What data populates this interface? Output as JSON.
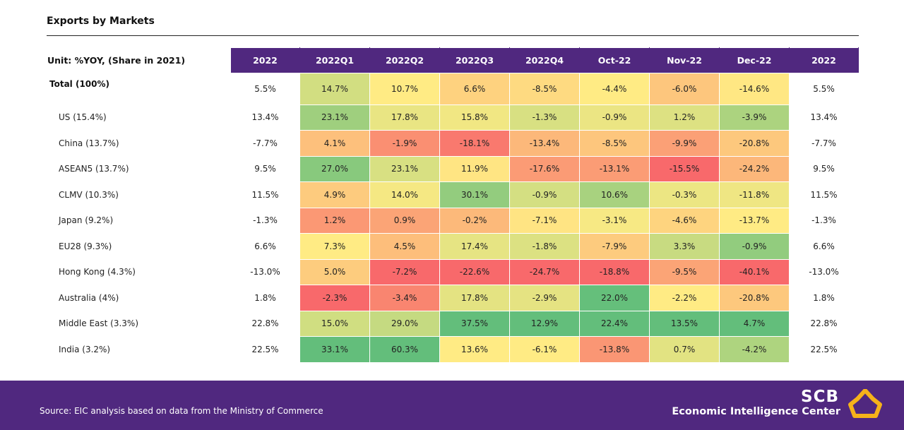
{
  "title": "Exports by Markets",
  "chart_data": {
    "type": "table",
    "title": "Exports by Markets",
    "unit": "Unit: %YOY, (Share in 2021)",
    "columns": [
      "2022",
      "2022Q1",
      "2022Q2",
      "2022Q3",
      "2022Q4",
      "Oct-22",
      "Nov-22",
      "Dec-22",
      "2022"
    ],
    "heatmap_columns": [
      1,
      2,
      3,
      4,
      5,
      6,
      7
    ],
    "rows": [
      {
        "label": "Total (100%)",
        "values": [
          "5.5%",
          "14.7%",
          "10.7%",
          "6.6%",
          "-8.5%",
          "-4.4%",
          "-6.0%",
          "-14.6%",
          "5.5%"
        ]
      },
      {
        "label": "US (15.4%)",
        "values": [
          "13.4%",
          "23.1%",
          "17.8%",
          "15.8%",
          "-1.3%",
          "-0.9%",
          "1.2%",
          "-3.9%",
          "13.4%"
        ]
      },
      {
        "label": "China (13.7%)",
        "values": [
          "-7.7%",
          "4.1%",
          "-1.9%",
          "-18.1%",
          "-13.4%",
          "-8.5%",
          "-9.9%",
          "-20.8%",
          "-7.7%"
        ]
      },
      {
        "label": "ASEAN5 (13.7%)",
        "values": [
          "9.5%",
          "27.0%",
          "23.1%",
          "11.9%",
          "-17.6%",
          "-13.1%",
          "-15.5%",
          "-24.2%",
          "9.5%"
        ]
      },
      {
        "label": "CLMV (10.3%)",
        "values": [
          "11.5%",
          "4.9%",
          "14.0%",
          "30.1%",
          "-0.9%",
          "10.6%",
          "-0.3%",
          "-11.8%",
          "11.5%"
        ]
      },
      {
        "label": "Japan (9.2%)",
        "values": [
          "-1.3%",
          "1.2%",
          "0.9%",
          "-0.2%",
          "-7.1%",
          "-3.1%",
          "-4.6%",
          "-13.7%",
          "-1.3%"
        ]
      },
      {
        "label": "EU28 (9.3%)",
        "values": [
          "6.6%",
          "7.3%",
          "4.5%",
          "17.4%",
          "-1.8%",
          "-7.9%",
          "3.3%",
          "-0.9%",
          "6.6%"
        ]
      },
      {
        "label": "Hong Kong (4.3%)",
        "values": [
          "-13.0%",
          "5.0%",
          "-7.2%",
          "-22.6%",
          "-24.7%",
          "-18.8%",
          "-9.5%",
          "-40.1%",
          "-13.0%"
        ]
      },
      {
        "label": "Australia (4%)",
        "values": [
          "1.8%",
          "-2.3%",
          "-3.4%",
          "17.8%",
          "-2.9%",
          "22.0%",
          "-2.2%",
          "-20.8%",
          "1.8%"
        ]
      },
      {
        "label": "Middle East (3.3%)",
        "values": [
          "22.8%",
          "15.0%",
          "29.0%",
          "37.5%",
          "12.9%",
          "22.4%",
          "13.5%",
          "4.7%",
          "22.8%"
        ]
      },
      {
        "label": "India (3.2%)",
        "values": [
          "22.5%",
          "33.1%",
          "60.3%",
          "13.6%",
          "-6.1%",
          "-13.8%",
          "0.7%",
          "-4.2%",
          "22.5%"
        ]
      }
    ],
    "color_scale": {
      "low": "#f8696b",
      "mid": "#ffeb84",
      "high": "#63be7b"
    }
  },
  "footer": {
    "source": "Source: EIC analysis based on data from the Ministry of Commerce",
    "brand_top": "SCB",
    "brand_bottom": "Economic Intelligence Center",
    "background": "#50287f",
    "logo_icon": "scb-logo-icon"
  }
}
